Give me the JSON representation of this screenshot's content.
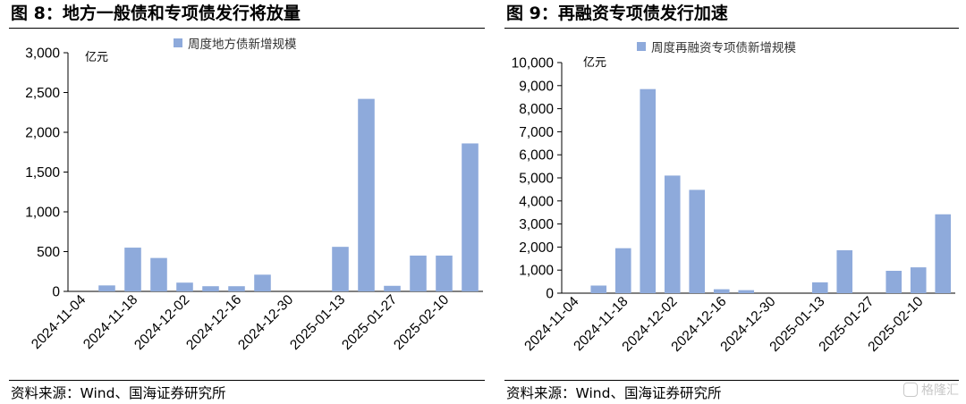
{
  "colors": {
    "bar": "#8eaadb",
    "axis": "#000000"
  },
  "left": {
    "title": "图 8：地方一般债和专项债发行将放量",
    "source": "资料来源：Wind、国海证券研究所"
  },
  "right": {
    "title": "图 9：再融资专项债发行加速",
    "source": "资料来源：Wind、国海证券研究所"
  },
  "watermark": {
    "text": "格隆汇"
  },
  "chart_data": [
    {
      "type": "bar",
      "unit": "亿元",
      "legend": "周度地方债新增规模",
      "legend_position": "top",
      "grid": false,
      "ylim": [
        0,
        3000
      ],
      "yticks": [
        0,
        500,
        1000,
        1500,
        2000,
        2500,
        3000
      ],
      "ytick_labels": [
        "0",
        "500",
        "1,000",
        "1,500",
        "2,000",
        "2,500",
        "3,000"
      ],
      "xtick_labels": [
        "2024-11-04",
        "2024-11-18",
        "2024-12-02",
        "2024-12-16",
        "2024-12-30",
        "2025-01-13",
        "2025-01-27",
        "2025-02-10"
      ],
      "series": [
        {
          "name": "周度地方债新增规模",
          "values": [
            0,
            75,
            550,
            420,
            110,
            65,
            65,
            210,
            0,
            0,
            560,
            2420,
            70,
            450,
            450,
            1860
          ]
        }
      ]
    },
    {
      "type": "bar",
      "unit": "亿元",
      "legend": "周度再融资专项债新增规模",
      "legend_position": "top",
      "grid": false,
      "ylim": [
        0,
        10000
      ],
      "yticks": [
        0,
        1000,
        2000,
        3000,
        4000,
        5000,
        6000,
        7000,
        8000,
        9000,
        10000
      ],
      "ytick_labels": [
        "0",
        "1,000",
        "2,000",
        "3,000",
        "4,000",
        "5,000",
        "6,000",
        "7,000",
        "8,000",
        "9,000",
        "10,000"
      ],
      "xtick_labels": [
        "2024-11-04",
        "2024-11-18",
        "2024-12-02",
        "2024-12-16",
        "2024-12-30",
        "2025-01-13",
        "2025-01-27",
        "2025-02-10"
      ],
      "series": [
        {
          "name": "周度再融资专项债新增规模",
          "values": [
            0,
            330,
            1950,
            8850,
            5100,
            4480,
            170,
            130,
            0,
            0,
            470,
            1860,
            0,
            970,
            1120,
            3420
          ]
        }
      ]
    }
  ]
}
